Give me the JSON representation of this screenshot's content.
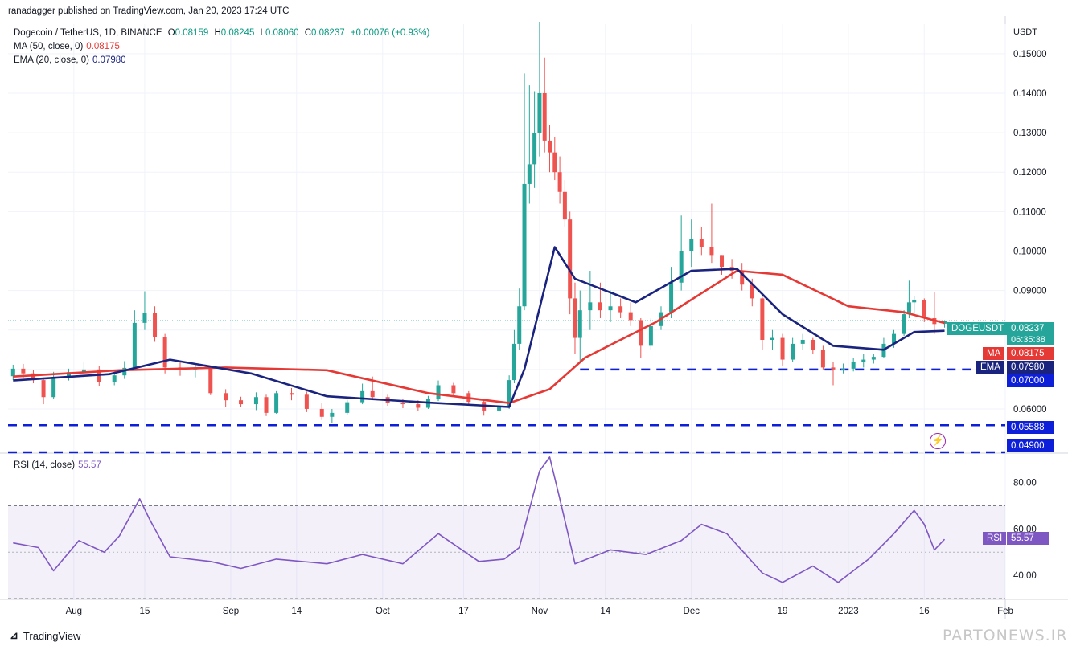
{
  "header": {
    "published": "ranadagger published on TradingView.com, Jan 20, 2023 17:24 UTC",
    "symbol": "Dogecoin / TetherUS, 1D, BINANCE",
    "o_label": "O",
    "o": "0.08159",
    "h_label": "H",
    "h": "0.08245",
    "l_label": "L",
    "l": "0.08060",
    "c_label": "C",
    "c": "0.08237",
    "change": "+0.00076 (+0.93%)",
    "ma_label": "MA (50, close, 0)",
    "ma_value": "0.08175",
    "ema_label": "EMA (20, close, 0)",
    "ema_value": "0.07980",
    "rsi_label": "RSI (14, close)",
    "rsi_value": "55.57",
    "currency": "USDT"
  },
  "axis_labels": {
    "price_tag": "DOGEUSDT",
    "price": "0.08237",
    "countdown": "06:35:38",
    "ma_tag": "MA",
    "ma": "0.08175",
    "ema_tag": "EMA",
    "ema": "0.07980",
    "support_1": "0.07000",
    "support_2": "0.05588",
    "support_3": "0.04900",
    "rsi_tag": "RSI",
    "rsi": "55.57"
  },
  "footer": {
    "brand": "TradingView",
    "watermark": "PARTONEWS.IR"
  },
  "colors": {
    "up": "#26a69a",
    "down": "#ef5350",
    "ma": "#e53935",
    "ema": "#1a237e",
    "rsi": "#7e57c2",
    "support": "#0d1fd8",
    "flash": "#9c27b0"
  },
  "chart_data": [
    {
      "type": "candlestick",
      "title": "Dogecoin / TetherUS, 1D, BINANCE",
      "y_axis": {
        "ticks": [
          0.06,
          0.07,
          0.08,
          0.09,
          0.1,
          0.11,
          0.12,
          0.13,
          0.14,
          0.15
        ],
        "tick_labels": [
          "0.06000",
          "0.07000",
          "0.08000",
          "0.09000",
          "0.10000",
          "0.11000",
          "0.12000",
          "0.13000",
          "0.14000",
          "0.15000"
        ],
        "ylim": [
          0.049,
          0.1575
        ],
        "position": "right"
      },
      "x_axis": {
        "tick_labels": [
          "Aug",
          "15",
          "Sep",
          "14",
          "Oct",
          "17",
          "Nov",
          "14",
          "Dec",
          "19",
          "2023",
          "16",
          "Feb"
        ],
        "range": [
          "2022-07-19",
          "2023-02-01"
        ]
      },
      "candles": [
        {
          "date": "2022-07-20",
          "o": 0.0683,
          "h": 0.0712,
          "l": 0.0673,
          "c": 0.0702
        },
        {
          "date": "2022-07-22",
          "o": 0.0702,
          "h": 0.0714,
          "l": 0.0679,
          "c": 0.069
        },
        {
          "date": "2022-07-24",
          "o": 0.069,
          "h": 0.0699,
          "l": 0.0665,
          "c": 0.0673
        },
        {
          "date": "2022-07-26",
          "o": 0.0673,
          "h": 0.0678,
          "l": 0.0612,
          "c": 0.063
        },
        {
          "date": "2022-07-28",
          "o": 0.063,
          "h": 0.0694,
          "l": 0.0626,
          "c": 0.068
        },
        {
          "date": "2022-07-31",
          "o": 0.068,
          "h": 0.0702,
          "l": 0.0672,
          "c": 0.0693
        },
        {
          "date": "2022-08-03",
          "o": 0.0693,
          "h": 0.0718,
          "l": 0.068,
          "c": 0.07
        },
        {
          "date": "2022-08-06",
          "o": 0.07,
          "h": 0.0708,
          "l": 0.0658,
          "c": 0.0668
        },
        {
          "date": "2022-08-09",
          "o": 0.0668,
          "h": 0.0694,
          "l": 0.066,
          "c": 0.0685
        },
        {
          "date": "2022-08-11",
          "o": 0.0685,
          "h": 0.0721,
          "l": 0.0676,
          "c": 0.0704
        },
        {
          "date": "2022-08-13",
          "o": 0.0704,
          "h": 0.085,
          "l": 0.07,
          "c": 0.0818
        },
        {
          "date": "2022-08-15",
          "o": 0.0818,
          "h": 0.0898,
          "l": 0.08,
          "c": 0.0843
        },
        {
          "date": "2022-08-17",
          "o": 0.0843,
          "h": 0.086,
          "l": 0.077,
          "c": 0.0783
        },
        {
          "date": "2022-08-19",
          "o": 0.0783,
          "h": 0.079,
          "l": 0.069,
          "c": 0.0705
        },
        {
          "date": "2022-08-22",
          "o": 0.0705,
          "h": 0.0718,
          "l": 0.0684,
          "c": 0.07
        },
        {
          "date": "2022-08-25",
          "o": 0.07,
          "h": 0.0716,
          "l": 0.068,
          "c": 0.0705
        },
        {
          "date": "2022-08-28",
          "o": 0.0705,
          "h": 0.0709,
          "l": 0.0635,
          "c": 0.064
        },
        {
          "date": "2022-08-31",
          "o": 0.064,
          "h": 0.065,
          "l": 0.0606,
          "c": 0.0622
        },
        {
          "date": "2022-09-03",
          "o": 0.0622,
          "h": 0.0631,
          "l": 0.0605,
          "c": 0.0612
        },
        {
          "date": "2022-09-06",
          "o": 0.0612,
          "h": 0.0642,
          "l": 0.0597,
          "c": 0.063
        },
        {
          "date": "2022-09-08",
          "o": 0.063,
          "h": 0.0636,
          "l": 0.0582,
          "c": 0.059
        },
        {
          "date": "2022-09-10",
          "o": 0.059,
          "h": 0.0645,
          "l": 0.0588,
          "c": 0.064
        },
        {
          "date": "2022-09-13",
          "o": 0.064,
          "h": 0.0653,
          "l": 0.0622,
          "c": 0.0636
        },
        {
          "date": "2022-09-16",
          "o": 0.0636,
          "h": 0.0644,
          "l": 0.0592,
          "c": 0.06
        },
        {
          "date": "2022-09-19",
          "o": 0.06,
          "h": 0.0615,
          "l": 0.0572,
          "c": 0.058
        },
        {
          "date": "2022-09-21",
          "o": 0.058,
          "h": 0.06,
          "l": 0.0565,
          "c": 0.059
        },
        {
          "date": "2022-09-24",
          "o": 0.059,
          "h": 0.0623,
          "l": 0.0586,
          "c": 0.0617
        },
        {
          "date": "2022-09-27",
          "o": 0.0617,
          "h": 0.0664,
          "l": 0.0612,
          "c": 0.0645
        },
        {
          "date": "2022-09-29",
          "o": 0.0645,
          "h": 0.0682,
          "l": 0.0626,
          "c": 0.063
        },
        {
          "date": "2022-10-02",
          "o": 0.063,
          "h": 0.0636,
          "l": 0.0608,
          "c": 0.0616
        },
        {
          "date": "2022-10-05",
          "o": 0.0616,
          "h": 0.0625,
          "l": 0.0602,
          "c": 0.0612
        },
        {
          "date": "2022-10-08",
          "o": 0.0612,
          "h": 0.0622,
          "l": 0.0595,
          "c": 0.0603
        },
        {
          "date": "2022-10-10",
          "o": 0.0603,
          "h": 0.0633,
          "l": 0.06,
          "c": 0.0625
        },
        {
          "date": "2022-10-12",
          "o": 0.0625,
          "h": 0.0672,
          "l": 0.062,
          "c": 0.066
        },
        {
          "date": "2022-10-15",
          "o": 0.066,
          "h": 0.0666,
          "l": 0.0632,
          "c": 0.064
        },
        {
          "date": "2022-10-18",
          "o": 0.064,
          "h": 0.0645,
          "l": 0.0612,
          "c": 0.0618
        },
        {
          "date": "2022-10-21",
          "o": 0.0618,
          "h": 0.0626,
          "l": 0.0583,
          "c": 0.0596
        },
        {
          "date": "2022-10-24",
          "o": 0.0596,
          "h": 0.0612,
          "l": 0.0592,
          "c": 0.0605
        },
        {
          "date": "2022-10-26",
          "o": 0.0605,
          "h": 0.0685,
          "l": 0.06,
          "c": 0.0673
        },
        {
          "date": "2022-10-27",
          "o": 0.0673,
          "h": 0.08,
          "l": 0.0665,
          "c": 0.0765
        },
        {
          "date": "2022-10-28",
          "o": 0.0765,
          "h": 0.0905,
          "l": 0.075,
          "c": 0.086
        },
        {
          "date": "2022-10-29",
          "o": 0.086,
          "h": 0.145,
          "l": 0.085,
          "c": 0.117
        },
        {
          "date": "2022-10-30",
          "o": 0.117,
          "h": 0.142,
          "l": 0.112,
          "c": 0.122
        },
        {
          "date": "2022-10-31",
          "o": 0.122,
          "h": 0.1405,
          "l": 0.116,
          "c": 0.13
        },
        {
          "date": "2022-11-01",
          "o": 0.13,
          "h": 0.158,
          "l": 0.124,
          "c": 0.14
        },
        {
          "date": "2022-11-02",
          "o": 0.14,
          "h": 0.149,
          "l": 0.125,
          "c": 0.128
        },
        {
          "date": "2022-11-03",
          "o": 0.128,
          "h": 0.132,
          "l": 0.12,
          "c": 0.125
        },
        {
          "date": "2022-11-04",
          "o": 0.125,
          "h": 0.129,
          "l": 0.118,
          "c": 0.12
        },
        {
          "date": "2022-11-05",
          "o": 0.12,
          "h": 0.124,
          "l": 0.112,
          "c": 0.115
        },
        {
          "date": "2022-11-06",
          "o": 0.115,
          "h": 0.118,
          "l": 0.106,
          "c": 0.108
        },
        {
          "date": "2022-11-07",
          "o": 0.108,
          "h": 0.11,
          "l": 0.084,
          "c": 0.088
        },
        {
          "date": "2022-11-08",
          "o": 0.088,
          "h": 0.092,
          "l": 0.074,
          "c": 0.078
        },
        {
          "date": "2022-11-09",
          "o": 0.078,
          "h": 0.09,
          "l": 0.072,
          "c": 0.085
        },
        {
          "date": "2022-11-11",
          "o": 0.085,
          "h": 0.095,
          "l": 0.08,
          "c": 0.087
        },
        {
          "date": "2022-11-13",
          "o": 0.087,
          "h": 0.092,
          "l": 0.083,
          "c": 0.085
        },
        {
          "date": "2022-11-15",
          "o": 0.085,
          "h": 0.09,
          "l": 0.082,
          "c": 0.086
        },
        {
          "date": "2022-11-17",
          "o": 0.086,
          "h": 0.088,
          "l": 0.083,
          "c": 0.0845
        },
        {
          "date": "2022-11-19",
          "o": 0.0845,
          "h": 0.087,
          "l": 0.081,
          "c": 0.0825
        },
        {
          "date": "2022-11-21",
          "o": 0.0825,
          "h": 0.083,
          "l": 0.073,
          "c": 0.076
        },
        {
          "date": "2022-11-23",
          "o": 0.076,
          "h": 0.083,
          "l": 0.075,
          "c": 0.081
        },
        {
          "date": "2022-11-25",
          "o": 0.081,
          "h": 0.086,
          "l": 0.08,
          "c": 0.0845
        },
        {
          "date": "2022-11-27",
          "o": 0.0845,
          "h": 0.096,
          "l": 0.083,
          "c": 0.092
        },
        {
          "date": "2022-11-29",
          "o": 0.092,
          "h": 0.109,
          "l": 0.09,
          "c": 0.1
        },
        {
          "date": "2022-12-01",
          "o": 0.1,
          "h": 0.108,
          "l": 0.096,
          "c": 0.103
        },
        {
          "date": "2022-12-03",
          "o": 0.103,
          "h": 0.106,
          "l": 0.099,
          "c": 0.101
        },
        {
          "date": "2022-12-05",
          "o": 0.101,
          "h": 0.112,
          "l": 0.097,
          "c": 0.099
        },
        {
          "date": "2022-12-07",
          "o": 0.099,
          "h": 0.099,
          "l": 0.094,
          "c": 0.096
        },
        {
          "date": "2022-12-09",
          "o": 0.096,
          "h": 0.098,
          "l": 0.093,
          "c": 0.095
        },
        {
          "date": "2022-12-11",
          "o": 0.095,
          "h": 0.097,
          "l": 0.09,
          "c": 0.0915
        },
        {
          "date": "2022-12-13",
          "o": 0.0915,
          "h": 0.093,
          "l": 0.086,
          "c": 0.088
        },
        {
          "date": "2022-12-15",
          "o": 0.088,
          "h": 0.089,
          "l": 0.075,
          "c": 0.0775
        },
        {
          "date": "2022-12-17",
          "o": 0.0775,
          "h": 0.08,
          "l": 0.075,
          "c": 0.078
        },
        {
          "date": "2022-12-19",
          "o": 0.078,
          "h": 0.079,
          "l": 0.071,
          "c": 0.0725
        },
        {
          "date": "2022-12-21",
          "o": 0.0725,
          "h": 0.078,
          "l": 0.0718,
          "c": 0.0765
        },
        {
          "date": "2022-12-23",
          "o": 0.0765,
          "h": 0.079,
          "l": 0.075,
          "c": 0.0775
        },
        {
          "date": "2022-12-25",
          "o": 0.0775,
          "h": 0.078,
          "l": 0.074,
          "c": 0.075
        },
        {
          "date": "2022-12-27",
          "o": 0.075,
          "h": 0.076,
          "l": 0.07,
          "c": 0.0705
        },
        {
          "date": "2022-12-29",
          "o": 0.0705,
          "h": 0.072,
          "l": 0.066,
          "c": 0.07
        },
        {
          "date": "2022-12-31",
          "o": 0.07,
          "h": 0.0715,
          "l": 0.069,
          "c": 0.0702
        },
        {
          "date": "2023-01-02",
          "o": 0.0702,
          "h": 0.073,
          "l": 0.0695,
          "c": 0.0718
        },
        {
          "date": "2023-01-04",
          "o": 0.0718,
          "h": 0.074,
          "l": 0.0705,
          "c": 0.0725
        },
        {
          "date": "2023-01-06",
          "o": 0.0725,
          "h": 0.074,
          "l": 0.0715,
          "c": 0.0732
        },
        {
          "date": "2023-01-08",
          "o": 0.0732,
          "h": 0.078,
          "l": 0.073,
          "c": 0.0765
        },
        {
          "date": "2023-01-10",
          "o": 0.0765,
          "h": 0.08,
          "l": 0.0755,
          "c": 0.079
        },
        {
          "date": "2023-01-12",
          "o": 0.079,
          "h": 0.085,
          "l": 0.0785,
          "c": 0.084
        },
        {
          "date": "2023-01-13",
          "o": 0.084,
          "h": 0.0925,
          "l": 0.083,
          "c": 0.087
        },
        {
          "date": "2023-01-14",
          "o": 0.087,
          "h": 0.0885,
          "l": 0.084,
          "c": 0.0875
        },
        {
          "date": "2023-01-16",
          "o": 0.0875,
          "h": 0.088,
          "l": 0.082,
          "c": 0.083
        },
        {
          "date": "2023-01-18",
          "o": 0.083,
          "h": 0.0895,
          "l": 0.079,
          "c": 0.0815
        },
        {
          "date": "2023-01-20",
          "o": 0.08159,
          "h": 0.08245,
          "l": 0.0806,
          "c": 0.08237
        }
      ],
      "moving_averages": [
        {
          "name": "MA (50, close, 0)",
          "color": "#e53935",
          "x": [
            "2022-07-20",
            "2022-08-10",
            "2022-08-31",
            "2022-09-20",
            "2022-10-10",
            "2022-10-26",
            "2022-11-03",
            "2022-11-10",
            "2022-11-24",
            "2022-12-10",
            "2022-12-19",
            "2023-01-01",
            "2023-01-12",
            "2023-01-20"
          ],
          "values": [
            0.0682,
            0.0698,
            0.0705,
            0.0698,
            0.064,
            0.0615,
            0.065,
            0.073,
            0.082,
            0.095,
            0.094,
            0.086,
            0.0845,
            0.08175
          ]
        },
        {
          "name": "EMA (20, close, 0)",
          "color": "#1a237e",
          "x": [
            "2022-07-20",
            "2022-08-08",
            "2022-08-20",
            "2022-09-05",
            "2022-09-20",
            "2022-10-10",
            "2022-10-26",
            "2022-10-29",
            "2022-11-04",
            "2022-11-08",
            "2022-11-20",
            "2022-12-01",
            "2022-12-10",
            "2022-12-19",
            "2022-12-29",
            "2023-01-08",
            "2023-01-14",
            "2023-01-20"
          ],
          "values": [
            0.0672,
            0.0688,
            0.0725,
            0.069,
            0.0632,
            0.0616,
            0.0605,
            0.07,
            0.101,
            0.093,
            0.087,
            0.095,
            0.0955,
            0.084,
            0.076,
            0.075,
            0.0795,
            0.0798
          ]
        }
      ],
      "horizontal_levels": [
        0.07,
        0.05588,
        0.049
      ],
      "last_price": 0.08237
    },
    {
      "type": "line",
      "title": "RSI (14, close)",
      "y_axis": {
        "ticks": [
          40,
          60,
          80
        ],
        "tick_labels": [
          "40.00",
          "60.00",
          "80.00"
        ],
        "ylim": [
          30,
          92
        ],
        "band": [
          30,
          70
        ]
      },
      "series": [
        {
          "name": "RSI (14, close)",
          "x": [
            "2022-07-20",
            "2022-07-25",
            "2022-07-28",
            "2022-08-02",
            "2022-08-07",
            "2022-08-10",
            "2022-08-14",
            "2022-08-16",
            "2022-08-20",
            "2022-08-28",
            "2022-09-03",
            "2022-09-10",
            "2022-09-20",
            "2022-09-27",
            "2022-10-05",
            "2022-10-12",
            "2022-10-20",
            "2022-10-25",
            "2022-10-28",
            "2022-11-01",
            "2022-11-03",
            "2022-11-05",
            "2022-11-08",
            "2022-11-15",
            "2022-11-22",
            "2022-11-29",
            "2022-12-03",
            "2022-12-08",
            "2022-12-15",
            "2022-12-19",
            "2022-12-25",
            "2022-12-30",
            "2023-01-05",
            "2023-01-10",
            "2023-01-14",
            "2023-01-16",
            "2023-01-18",
            "2023-01-20"
          ],
          "values": [
            54,
            52,
            42,
            55,
            50,
            57,
            73,
            64,
            48,
            46,
            43,
            47,
            45,
            49,
            45,
            58,
            46,
            47,
            52,
            85,
            91,
            73,
            45,
            51,
            49,
            55,
            62,
            58,
            41,
            37,
            44,
            37,
            47,
            58,
            68,
            62,
            51,
            55.57
          ]
        }
      ],
      "last_value": 55.57
    }
  ]
}
